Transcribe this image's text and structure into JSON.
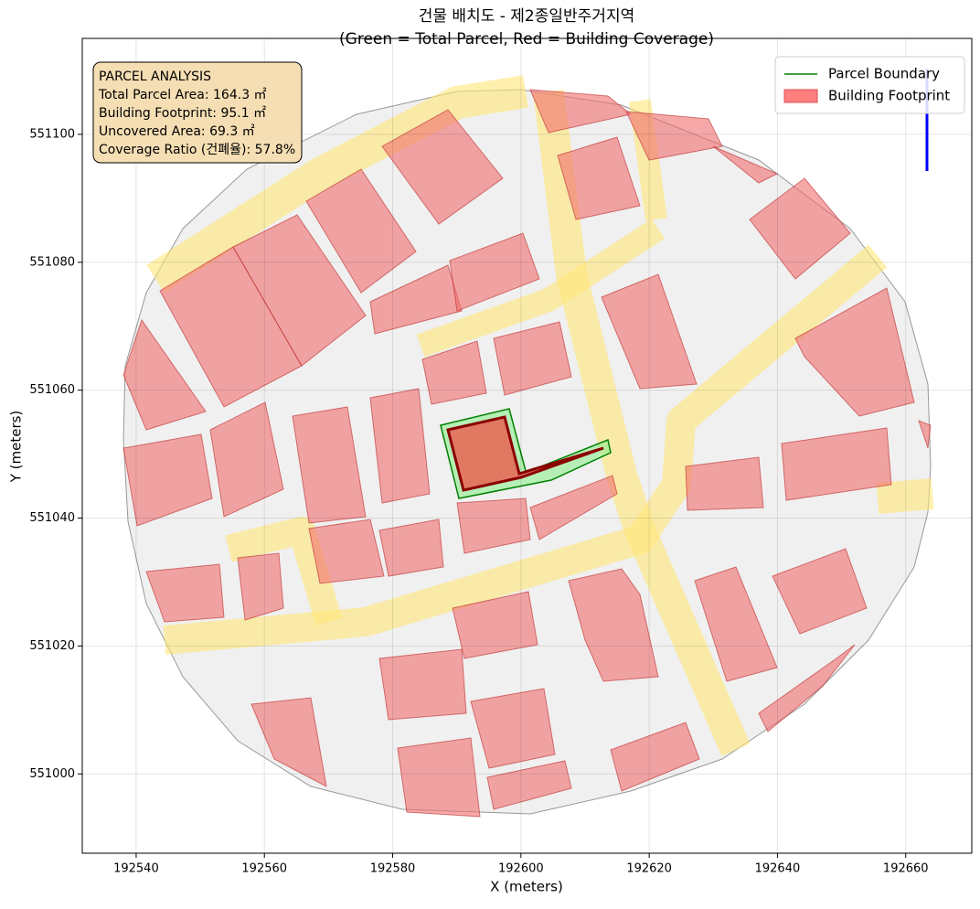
{
  "chart_data": {
    "type": "map",
    "title": "건물 배치도 - 제2종일반주거지역",
    "subtitle": "(Green = Total Parcel, Red = Building Coverage)",
    "xlabel": "X (meters)",
    "ylabel": "Y (meters)",
    "xlim": [
      192531.6,
      192670.3
    ],
    "xticks": [
      192540,
      192560,
      192580,
      192600,
      192620,
      192640,
      192660
    ],
    "ylim": [
      550987.6,
      551115.0
    ],
    "yticks": [
      551000,
      551020,
      551040,
      551060,
      551080,
      551100
    ],
    "grid": true,
    "legend": "upper right",
    "series": [
      {
        "name": "Parcel Boundary",
        "color": "#008000"
      },
      {
        "name": "Building Footprint",
        "color": "#ff7f7f"
      }
    ],
    "annotation": [
      "PARCEL ANALYSIS",
      "Total Parcel Area: 164.3 ㎡",
      "Building Footprint: 95.1 ㎡",
      "Uncovered Area: 69.3 ㎡",
      "Coverage Ratio (건폐율): 57.8%"
    ]
  }
}
